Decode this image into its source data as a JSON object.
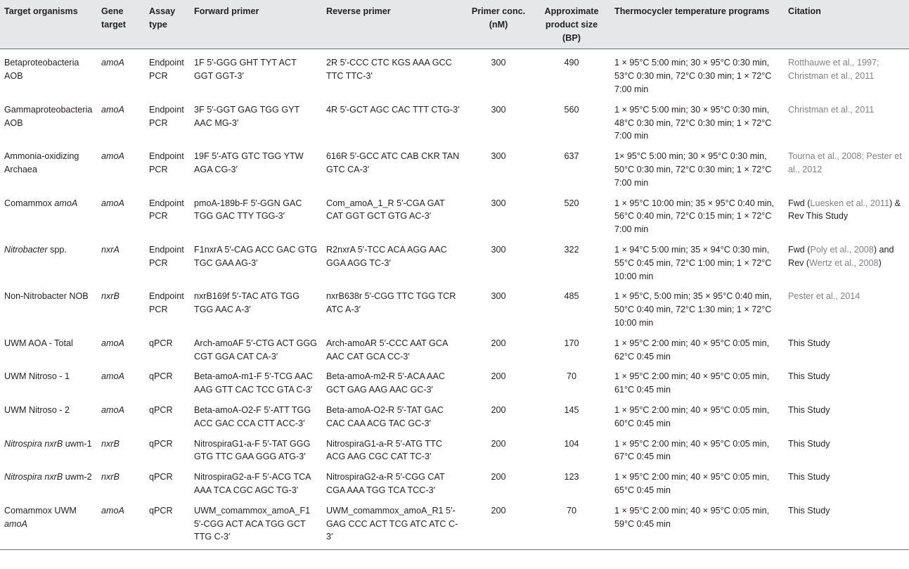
{
  "headers": {
    "organism": "Target organisms",
    "gene": "Gene target",
    "assay": "Assay type",
    "fwd": "Forward primer",
    "rev": "Reverse primer",
    "conc": "Primer conc. (nM)",
    "size": "Approximate product size (BP)",
    "program": "Thermocycler temperature programs",
    "citation": "Citation"
  },
  "rows": [
    {
      "org_a": "Betaproteobacteria AOB",
      "org_b": "",
      "org_c": "",
      "gene": "amoA",
      "assay": "Endpoint PCR",
      "fwd": "1F 5′-GGG GHT TYT ACT GGT GGT-3′",
      "rev": "2R 5′-CCC CTC KGS AAA GCC TTC TTC-3′",
      "conc": "300",
      "size": "490",
      "program": "1 × 95°C 5:00 min; 30 × 95°C 0:30 min, 53°C 0:30 min, 72°C 0:30 min; 1 × 72°C 7:00 min",
      "cit_pre": "",
      "cit_link": "Rotthauwe et al., 1997; Christman et al., 2011",
      "cit_mid": "",
      "cit_link2": "",
      "cit_post": ""
    },
    {
      "org_a": "Gammaproteobacteria AOB",
      "org_b": "",
      "org_c": "",
      "gene": "amoA",
      "assay": "Endpoint PCR",
      "fwd": "3F 5′-GGT GAG TGG GYT AAC MG-3′",
      "rev": "4R 5′-GCT AGC CAC TTT CTG-3′",
      "conc": "300",
      "size": "560",
      "program": "1 × 95°C 5:00 min; 30 × 95°C 0:30 min, 48°C 0:30 min, 72°C 0:30 min; 1 × 72°C 7:00 min",
      "cit_pre": "",
      "cit_link": "Christman et al., 2011",
      "cit_mid": "",
      "cit_link2": "",
      "cit_post": ""
    },
    {
      "org_a": "Ammonia-oxidizing Archaea",
      "org_b": "",
      "org_c": "",
      "gene": "amoA",
      "assay": "Endpoint PCR",
      "fwd": "19F 5′-ATG GTC TGG YTW AGA CG-3′",
      "rev": "616R 5′-GCC ATC CAB CKR TAN GTC CA-3′",
      "conc": "300",
      "size": "637",
      "program": "1× 95°C 5:00 min; 30 × 95°C 0:30 min, 50°C 0:30 min, 72°C 0:30 min; 1 × 72°C 7:00 min",
      "cit_pre": "",
      "cit_link": "Tourna et al., 2008; Pester et al., 2012",
      "cit_mid": "",
      "cit_link2": "",
      "cit_post": ""
    },
    {
      "org_a": "Comammox ",
      "org_b": "amoA",
      "org_c": "",
      "gene": "amoA",
      "assay": "Endpoint PCR",
      "fwd": "pmoA-189b-F 5′-GGN GAC TGG GAC TTY TGG-3′",
      "rev": "Com_amoA_1_R 5′-CGA GAT CAT GGT GCT GTG AC-3′",
      "conc": "300",
      "size": "520",
      "program": "1 × 95°C 10:00 min; 35 × 95°C 0:40 min, 56°C 0:40 min, 72°C 0:15 min; 1 × 72°C 7:00 min",
      "cit_pre": "Fwd (",
      "cit_link": "Luesken et al., 2011",
      "cit_mid": ") & Rev This Study",
      "cit_link2": "",
      "cit_post": ""
    },
    {
      "org_a": "",
      "org_b": "Nitrobacter",
      "org_c": " spp.",
      "gene": "nxrA",
      "assay": "Endpoint PCR",
      "fwd": "F1nxrA 5′-CAG ACC GAC GTG TGC GAA AG-3′",
      "rev": "R2nxrA 5′-TCC ACA AGG AAC GGA AGG TC-3′",
      "conc": "300",
      "size": "322",
      "program": "1 × 94°C 5:00 min; 35 × 94°C 0:30 min, 55°C 0:45 min, 72°C 1:00 min; 1 × 72°C 10:00 min",
      "cit_pre": "Fwd (",
      "cit_link": "Poly et al., 2008",
      "cit_mid": ") and Rev (",
      "cit_link2": "Wertz et al., 2008",
      "cit_post": ")"
    },
    {
      "org_a": "Non-Nitrobacter NOB",
      "org_b": "",
      "org_c": "",
      "gene": "nxrB",
      "assay": "Endpoint PCR",
      "fwd": "nxrB169f 5′-TAC ATG TGG TGG AAC A-3′",
      "rev": "nxrB638r 5′-CGG TTC TGG TCR ATC A-3′",
      "conc": "300",
      "size": "485",
      "program": "1 × 95°C, 5:00 min; 35 × 95°C 0:40 min, 50°C 0:40 min, 72°C 1:30 min; 1 × 72°C 10:00 min",
      "cit_pre": "",
      "cit_link": "Pester et al., 2014",
      "cit_mid": "",
      "cit_link2": "",
      "cit_post": ""
    },
    {
      "org_a": "UWM AOA - Total",
      "org_b": "",
      "org_c": "",
      "gene": "amoA",
      "assay": "qPCR",
      "fwd": "Arch-amoAF 5′-CTG ACT GGG CGT GGA CAT CA-3′",
      "rev": "Arch-amoAR 5′-CCC AAT GCA AAC CAT GCA CC-3′",
      "conc": "200",
      "size": "170",
      "program": "1 × 95°C 2:00 min; 40 × 95°C 0:05 min, 62°C 0:45 min",
      "cit_pre": "This Study",
      "cit_link": "",
      "cit_mid": "",
      "cit_link2": "",
      "cit_post": ""
    },
    {
      "org_a": "UWM Nitroso - 1",
      "org_b": "",
      "org_c": "",
      "gene": "amoA",
      "assay": "qPCR",
      "fwd": "Beta-amoA-m1-F 5′-TCG AAC AAG GTT CAC TCC GTA C-3′",
      "rev": "Beta-amoA-m2-R 5′-ACA AAC GCT GAG AAG AAC GC-3′",
      "conc": "200",
      "size": "70",
      "program": "1 × 95°C 2:00 min; 40 × 95°C 0:05 min, 61°C 0:45 min",
      "cit_pre": "This Study",
      "cit_link": "",
      "cit_mid": "",
      "cit_link2": "",
      "cit_post": ""
    },
    {
      "org_a": "UWM Nitroso - 2",
      "org_b": "",
      "org_c": "",
      "gene": "amoA",
      "assay": "qPCR",
      "fwd": "Beta-amoA-O2-F 5′-ATT TGG ACC GAC CCA CTT ACC-3′",
      "rev": "Beta-amoA-O2-R 5′-TAT GAC CAC CAA ACG TAC GC-3′",
      "conc": "200",
      "size": "145",
      "program": "1 × 95°C 2:00 min; 40 × 95°C 0:05 min, 60°C 0:45 min",
      "cit_pre": "This Study",
      "cit_link": "",
      "cit_mid": "",
      "cit_link2": "",
      "cit_post": ""
    },
    {
      "org_a": "",
      "org_b": "Nitrospira nxrB",
      "org_c": " uwm-1",
      "gene": "nxrB",
      "assay": "qPCR",
      "fwd": "NitrospiraG1-a-F 5′-TAT GGG GTG TTC GAA GGG ATG-3′",
      "rev": "NitrospiraG1-a-R 5′-ATG TTC ACG AAG CGC CAT TC-3′",
      "conc": "200",
      "size": "104",
      "program": "1 × 95°C 2:00 min; 40 × 95°C 0:05 min, 67°C 0:45 min",
      "cit_pre": "This Study",
      "cit_link": "",
      "cit_mid": "",
      "cit_link2": "",
      "cit_post": ""
    },
    {
      "org_a": "",
      "org_b": "Nitrospira nxrB",
      "org_c": " uwm-2",
      "gene": "nxrB",
      "assay": "qPCR",
      "fwd": "NitrospiraG2-a-F 5′-ACG TCA AAA TCA CGC AGC TG-3′",
      "rev": "NitrospiraG2-a-R 5′-CGG CAT CGA AAA TGG TCA TCC-3′",
      "conc": "200",
      "size": "123",
      "program": "1 × 95°C 2:00 min; 40 × 95°C 0:05 min, 65°C 0:45 min",
      "cit_pre": "This Study",
      "cit_link": "",
      "cit_mid": "",
      "cit_link2": "",
      "cit_post": ""
    },
    {
      "org_a": "Comammox UWM ",
      "org_b": "amoA",
      "org_c": "",
      "gene": "amoA",
      "assay": "qPCR",
      "fwd": "UWM_comammox_amoA_F1 5′-CGG ACT ACA TGG GCT TTG C-3′",
      "rev": "UWM_comammox_amoA_R1 5′-GAG CCC ACT TCG ATC ATC C-3′",
      "conc": "200",
      "size": "70",
      "program": "1 × 95°C 2:00 min; 40 × 95°C 0:05 min, 59°C 0:45 min",
      "cit_pre": "This Study",
      "cit_link": "",
      "cit_mid": "",
      "cit_link2": "",
      "cit_post": ""
    }
  ]
}
